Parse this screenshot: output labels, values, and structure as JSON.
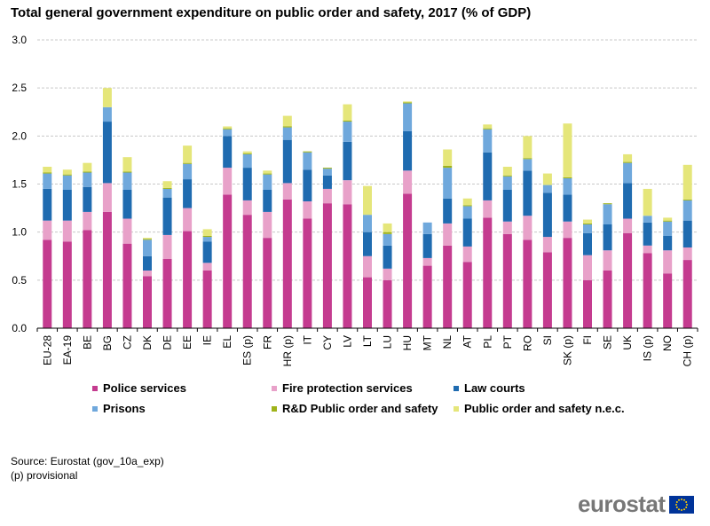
{
  "title": "Total general government expenditure on public order and safety, 2017 (% of GDP)",
  "source_lines": [
    "Source: Eurostat (gov_10a_exp)",
    "(p) provisional"
  ],
  "logo_text": "eurostat",
  "chart_data": {
    "type": "bar",
    "stacked": true,
    "title": "Total general government expenditure on public order and safety, 2017 (% of GDP)",
    "xlabel": "",
    "ylabel": "",
    "ylim": [
      0,
      3.0
    ],
    "yticks": [
      "0.0",
      "0.5",
      "1.0",
      "1.5",
      "2.0",
      "2.5",
      "3.0"
    ],
    "grid": true,
    "legend_position": "bottom",
    "categories": [
      "EU-28",
      "EA-19",
      "BE",
      "BG",
      "CZ",
      "DK",
      "DE",
      "EE",
      "IE",
      "EL",
      "ES (p)",
      "FR",
      "HR (p)",
      "IT",
      "CY",
      "LV",
      "LT",
      "LU",
      "HU",
      "MT",
      "NL",
      "AT",
      "PL",
      "PT",
      "RO",
      "SI",
      "SK (p)",
      "FI",
      "SE",
      "UK",
      "IS (p)",
      "NO",
      "CH (p)"
    ],
    "series": [
      {
        "name": "Police services",
        "color": "#c43b8f",
        "values": [
          0.92,
          0.9,
          1.02,
          1.21,
          0.88,
          0.54,
          0.72,
          1.01,
          0.6,
          1.39,
          1.18,
          0.94,
          1.34,
          1.14,
          1.3,
          1.29,
          0.53,
          0.5,
          1.4,
          0.65,
          0.86,
          0.69,
          1.15,
          0.98,
          0.92,
          0.79,
          0.94,
          0.5,
          0.6,
          0.99,
          0.78,
          0.57,
          0.71
        ]
      },
      {
        "name": "Fire protection services",
        "color": "#e8a1c9",
        "values": [
          0.2,
          0.22,
          0.19,
          0.3,
          0.26,
          0.06,
          0.25,
          0.24,
          0.08,
          0.28,
          0.15,
          0.27,
          0.17,
          0.18,
          0.15,
          0.25,
          0.22,
          0.12,
          0.24,
          0.08,
          0.23,
          0.16,
          0.18,
          0.13,
          0.25,
          0.16,
          0.17,
          0.26,
          0.21,
          0.15,
          0.08,
          0.24,
          0.13
        ]
      },
      {
        "name": "Law courts",
        "color": "#1f6bb0",
        "values": [
          0.33,
          0.32,
          0.26,
          0.64,
          0.3,
          0.15,
          0.39,
          0.3,
          0.22,
          0.33,
          0.34,
          0.23,
          0.45,
          0.33,
          0.14,
          0.4,
          0.25,
          0.24,
          0.41,
          0.25,
          0.26,
          0.29,
          0.5,
          0.33,
          0.47,
          0.46,
          0.28,
          0.23,
          0.27,
          0.37,
          0.24,
          0.15,
          0.28
        ]
      },
      {
        "name": "Prisons",
        "color": "#6fa8dc",
        "values": [
          0.16,
          0.15,
          0.15,
          0.15,
          0.18,
          0.17,
          0.09,
          0.16,
          0.05,
          0.07,
          0.14,
          0.16,
          0.13,
          0.18,
          0.07,
          0.21,
          0.18,
          0.12,
          0.29,
          0.12,
          0.32,
          0.13,
          0.24,
          0.14,
          0.12,
          0.08,
          0.17,
          0.09,
          0.21,
          0.21,
          0.07,
          0.15,
          0.21
        ]
      },
      {
        "name": "R&D Public order and safety",
        "color": "#9fb31a",
        "values": [
          0.01,
          0.01,
          0.01,
          0.0,
          0.01,
          0.01,
          0.01,
          0.01,
          0.01,
          0.01,
          0.01,
          0.01,
          0.01,
          0.01,
          0.01,
          0.01,
          0.0,
          0.02,
          0.01,
          0.0,
          0.02,
          0.01,
          0.01,
          0.01,
          0.01,
          0.0,
          0.01,
          0.01,
          0.01,
          0.01,
          0.0,
          0.01,
          0.01
        ]
      },
      {
        "name": "Public order and safety n.e.c.",
        "color": "#e5e67a",
        "values": [
          0.06,
          0.05,
          0.09,
          0.2,
          0.15,
          0.01,
          0.07,
          0.18,
          0.07,
          0.02,
          0.02,
          0.03,
          0.11,
          0.0,
          0.0,
          0.17,
          0.3,
          0.09,
          0.01,
          0.0,
          0.17,
          0.07,
          0.04,
          0.09,
          0.23,
          0.12,
          0.56,
          0.04,
          0.0,
          0.08,
          0.28,
          0.03,
          0.36
        ]
      }
    ]
  }
}
